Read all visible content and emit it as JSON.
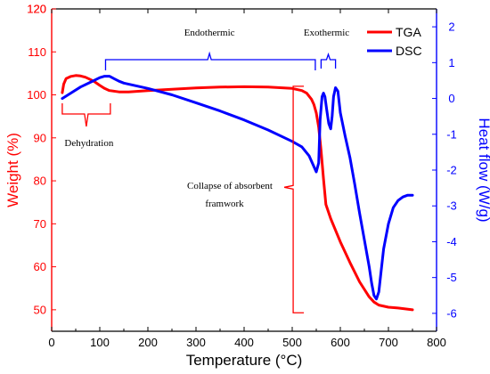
{
  "chart_data": {
    "type": "line",
    "title": "",
    "xlabel": "Temperature (°C)",
    "ylabel_left": "Weight (%)",
    "ylabel_right": "Heat flow (W/g)",
    "xlim": [
      0,
      800
    ],
    "ylim_left": [
      45,
      120
    ],
    "ylim_right": [
      -6.5,
      2.5
    ],
    "x_ticks": [
      "0",
      "100",
      "200",
      "300",
      "400",
      "500",
      "600",
      "700",
      "800"
    ],
    "y_ticks_left": [
      "50",
      "60",
      "70",
      "80",
      "90",
      "100",
      "110",
      "120"
    ],
    "y_ticks_right": [
      "-6",
      "-5",
      "-4",
      "-3",
      "-2",
      "-1",
      "0",
      "1",
      "2"
    ],
    "grid": false,
    "legend_position": "top-right",
    "colors": {
      "tga": "#ff0000",
      "dsc": "#0000ff",
      "annotation": "#0000ff",
      "bracket": "#ff0000"
    },
    "series": [
      {
        "name": "TGA",
        "axis": "left",
        "color": "#ff0000",
        "x": [
          22,
          25,
          30,
          40,
          50,
          60,
          70,
          80,
          90,
          100,
          110,
          120,
          140,
          160,
          200,
          250,
          300,
          350,
          400,
          450,
          500,
          520,
          530,
          540,
          545,
          550,
          555,
          560,
          565,
          570,
          580,
          600,
          620,
          640,
          660,
          670,
          680,
          700,
          720,
          750
        ],
        "y": [
          100.5,
          102.5,
          103.8,
          104.3,
          104.5,
          104.4,
          104.1,
          103.6,
          103.0,
          102.2,
          101.5,
          101.0,
          100.7,
          100.7,
          101.0,
          101.3,
          101.6,
          101.8,
          101.9,
          101.8,
          101.5,
          101.0,
          100.4,
          99.0,
          97.8,
          95.8,
          92.5,
          87.0,
          80.5,
          74.5,
          71.2,
          65.8,
          61.0,
          56.5,
          53.0,
          51.8,
          51.1,
          50.6,
          50.4,
          50.0
        ]
      },
      {
        "name": "DSC",
        "axis": "right",
        "color": "#0000ff",
        "x": [
          22,
          40,
          60,
          80,
          100,
          110,
          120,
          130,
          140,
          150,
          200,
          250,
          300,
          350,
          400,
          450,
          500,
          520,
          535,
          545,
          550,
          555,
          558,
          562,
          565,
          568,
          572,
          576,
          580,
          583,
          586,
          590,
          595,
          600,
          610,
          620,
          630,
          640,
          650,
          660,
          665,
          670,
          675,
          680,
          685,
          690,
          700,
          710,
          720,
          730,
          740,
          750
        ],
        "y": [
          0.0,
          0.15,
          0.32,
          0.45,
          0.58,
          0.62,
          0.62,
          0.55,
          0.48,
          0.43,
          0.28,
          0.1,
          -0.12,
          -0.35,
          -0.6,
          -0.88,
          -1.2,
          -1.35,
          -1.6,
          -1.9,
          -2.05,
          -1.8,
          -0.6,
          0.05,
          0.15,
          0.05,
          -0.35,
          -0.7,
          -0.85,
          -0.5,
          0.05,
          0.3,
          0.2,
          -0.4,
          -1.05,
          -1.65,
          -2.4,
          -3.2,
          -3.95,
          -4.7,
          -5.15,
          -5.5,
          -5.6,
          -5.4,
          -4.8,
          -4.2,
          -3.5,
          -3.05,
          -2.85,
          -2.75,
          -2.7,
          -2.7
        ]
      }
    ],
    "annotations": [
      {
        "id": "endothermic",
        "text": "Endothermic"
      },
      {
        "id": "exothermic",
        "text": "Exothermic"
      },
      {
        "id": "dehydration",
        "text": "Dehydration"
      },
      {
        "id": "collapse_1",
        "text": "Collapse of absorbent"
      },
      {
        "id": "collapse_2",
        "text": "framwork"
      }
    ]
  }
}
